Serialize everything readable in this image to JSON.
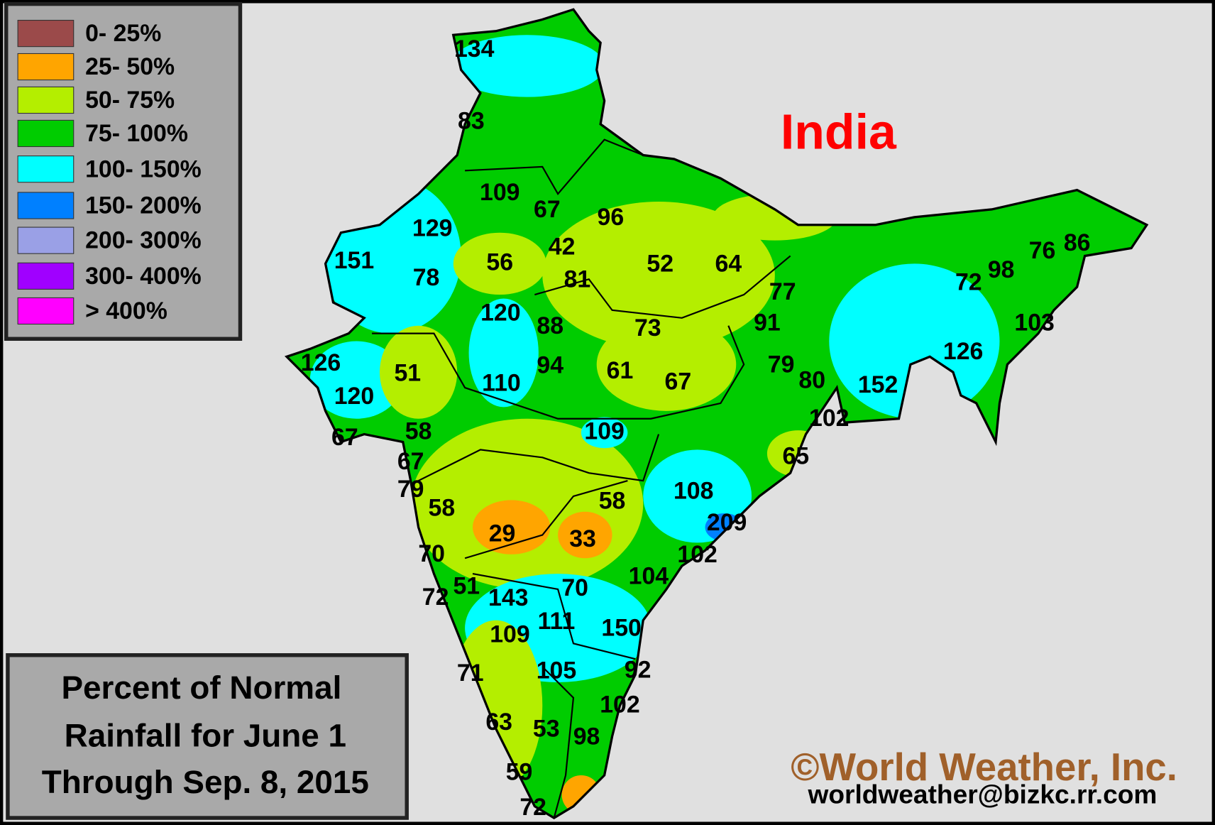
{
  "legend": [
    {
      "label": "0- 25%",
      "color": "#9b4a4a"
    },
    {
      "label": "25- 50%",
      "color": "#ffa500"
    },
    {
      "label": "50- 75%",
      "color": "#b4ee00"
    },
    {
      "label": "75- 100%",
      "color": "#00cc00"
    },
    {
      "label": "100- 150%",
      "color": "#00ffff"
    },
    {
      "label": "150- 200%",
      "color": "#0080ff"
    },
    {
      "label": "200- 300%",
      "color": "#9aa0e6"
    },
    {
      "label": "300- 400%",
      "color": "#a000ff"
    },
    {
      "label": "> 400%",
      "color": "#ff00ff"
    }
  ],
  "title": "India",
  "caption": [
    "Percent of Normal",
    "Rainfall for June 1",
    "Through Sep. 8, 2015"
  ],
  "copyright": "©World Weather, Inc.",
  "email": "worldweather@bizkc.rr.com",
  "labels": [
    "134",
    "83",
    "109",
    "67",
    "96",
    "129",
    "151",
    "42",
    "56",
    "78",
    "81",
    "52",
    "64",
    "77",
    "72",
    "98",
    "76",
    "86",
    "103",
    "120",
    "88",
    "73",
    "91",
    "126",
    "51",
    "110",
    "94",
    "61",
    "67",
    "79",
    "80",
    "152",
    "126",
    "120",
    "58",
    "67",
    "109",
    "102",
    "65",
    "67",
    "79",
    "58",
    "58",
    "108",
    "29",
    "33",
    "209",
    "70",
    "102",
    "104",
    "72",
    "51",
    "143",
    "70",
    "111",
    "150",
    "109",
    "71",
    "105",
    "92",
    "102",
    "63",
    "53",
    "98",
    "59",
    "72"
  ]
}
